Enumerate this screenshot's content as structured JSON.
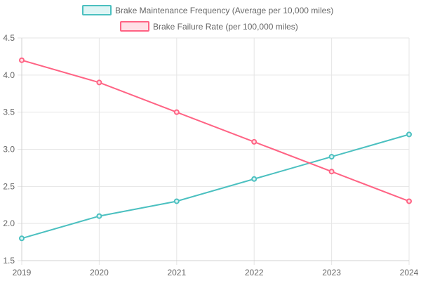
{
  "chart_data": {
    "type": "line",
    "categories": [
      "2019",
      "2020",
      "2021",
      "2022",
      "2023",
      "2024"
    ],
    "series": [
      {
        "name": "Brake Maintenance Frequency (Average per 10,000 miles)",
        "values": [
          1.8,
          2.1,
          2.3,
          2.6,
          2.9,
          3.2
        ],
        "color": "#4bc0c0",
        "fill": "#dff5f5"
      },
      {
        "name": "Brake Failure Rate (per 100,000 miles)",
        "values": [
          4.2,
          3.9,
          3.5,
          3.1,
          2.7,
          2.3
        ],
        "color": "#ff6384",
        "fill": "#ffe0e6"
      }
    ],
    "ylim": [
      1.5,
      4.5
    ],
    "yticks": [
      "1.5",
      "2.0",
      "2.5",
      "3.0",
      "3.5",
      "4.0",
      "4.5"
    ],
    "grid": true,
    "legend": "top"
  }
}
